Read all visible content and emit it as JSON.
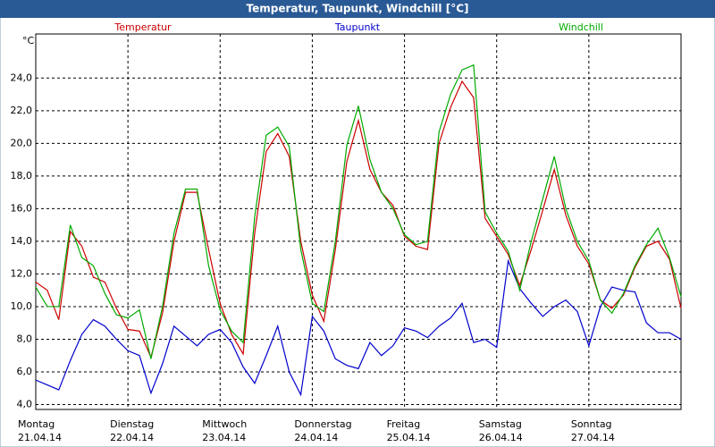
{
  "chart_data": {
    "type": "line",
    "title": "Temperatur, Taupunkt, Windchill [°C]",
    "y_unit": "°C",
    "x": [
      0,
      3,
      6,
      9,
      12,
      15,
      18,
      21,
      24,
      27,
      30,
      33,
      36,
      39,
      42,
      45,
      48,
      51,
      54,
      57,
      60,
      63,
      66,
      69,
      72,
      75,
      78,
      81,
      84,
      87,
      90,
      93,
      96,
      99,
      102,
      105,
      108,
      111,
      114,
      117,
      120,
      123,
      126,
      129,
      132,
      135,
      138,
      141,
      144,
      147,
      150,
      153,
      156,
      159,
      162,
      165,
      168
    ],
    "xlim": [
      0,
      168
    ],
    "xticks": [
      {
        "value": 0,
        "label": "Montag"
      },
      {
        "value": 24,
        "label": "Dienstag"
      },
      {
        "value": 48,
        "label": "Mittwoch"
      },
      {
        "value": 72,
        "label": "Donnerstag"
      },
      {
        "value": 96,
        "label": "Freitag"
      },
      {
        "value": 120,
        "label": "Samstag"
      },
      {
        "value": 144,
        "label": "Sonntag"
      }
    ],
    "xtick_dates": [
      "21.04.14",
      "22.04.14",
      "23.04.14",
      "24.04.14",
      "25.04.14",
      "26.04.14",
      "27.04.14"
    ],
    "ylim": [
      3.7,
      26.7
    ],
    "yticks": [
      {
        "value": 4,
        "label": "4,0"
      },
      {
        "value": 6,
        "label": "6,0"
      },
      {
        "value": 8,
        "label": "8,0"
      },
      {
        "value": 10,
        "label": "10,0"
      },
      {
        "value": 12,
        "label": "12,0"
      },
      {
        "value": 14,
        "label": "14,0"
      },
      {
        "value": 16,
        "label": "16,0"
      },
      {
        "value": 18,
        "label": "18,0"
      },
      {
        "value": 20,
        "label": "20,0"
      },
      {
        "value": 22,
        "label": "22,0"
      },
      {
        "value": 24,
        "label": "24,0"
      }
    ],
    "grid": true,
    "series": [
      {
        "name": "Temperatur",
        "color": "#cc0000",
        "values": [
          11.5,
          11.0,
          9.2,
          14.6,
          13.7,
          11.8,
          11.5,
          9.9,
          8.6,
          8.5,
          6.9,
          9.6,
          14.0,
          17.0,
          17.0,
          13.5,
          10.2,
          8.3,
          7.1,
          14.5,
          19.5,
          20.6,
          19.2,
          14.0,
          10.7,
          9.1,
          13.5,
          18.9,
          21.4,
          18.4,
          17.0,
          16.2,
          14.3,
          13.7,
          13.5,
          20.0,
          22.2,
          23.8,
          22.8,
          15.4,
          14.3,
          13.2,
          11.3,
          13.5,
          15.9,
          18.4,
          15.6,
          13.7,
          12.6,
          10.4,
          9.9,
          10.7,
          12.4,
          13.7,
          14.0,
          12.9,
          9.9
        ]
      },
      {
        "name": "Taupunkt",
        "color": "#0000cc",
        "values": [
          5.5,
          5.2,
          4.9,
          6.7,
          8.3,
          9.2,
          8.8,
          8.0,
          7.3,
          7.0,
          4.7,
          6.5,
          8.8,
          8.2,
          7.6,
          8.3,
          8.6,
          7.8,
          6.3,
          5.3,
          7.0,
          8.8,
          6.0,
          4.6,
          9.4,
          8.5,
          6.8,
          6.4,
          6.2,
          7.8,
          7.0,
          7.6,
          8.7,
          8.5,
          8.1,
          8.8,
          9.3,
          10.2,
          7.8,
          8.0,
          7.5,
          12.8,
          11.1,
          10.2,
          9.4,
          10.0,
          10.4,
          9.7,
          7.6,
          10.0,
          11.2,
          11.0,
          10.9,
          9.0,
          8.4,
          8.4,
          8.0
        ]
      },
      {
        "name": "Windchill",
        "color": "#00aa00",
        "values": [
          11.2,
          10.0,
          10.0,
          15.0,
          13.0,
          12.5,
          10.8,
          9.5,
          9.3,
          9.8,
          6.8,
          10.0,
          14.5,
          17.2,
          17.2,
          12.5,
          9.8,
          8.5,
          7.8,
          15.5,
          20.5,
          21.0,
          19.8,
          13.5,
          10.2,
          9.7,
          14.0,
          19.9,
          22.3,
          19.0,
          17.0,
          16.0,
          14.4,
          13.8,
          14.0,
          20.7,
          23.0,
          24.5,
          24.8,
          15.8,
          14.5,
          13.4,
          11.0,
          14.0,
          16.6,
          19.2,
          16.0,
          14.0,
          12.8,
          10.4,
          9.6,
          10.8,
          12.5,
          13.8,
          14.8,
          13.0,
          10.6
        ]
      }
    ]
  }
}
